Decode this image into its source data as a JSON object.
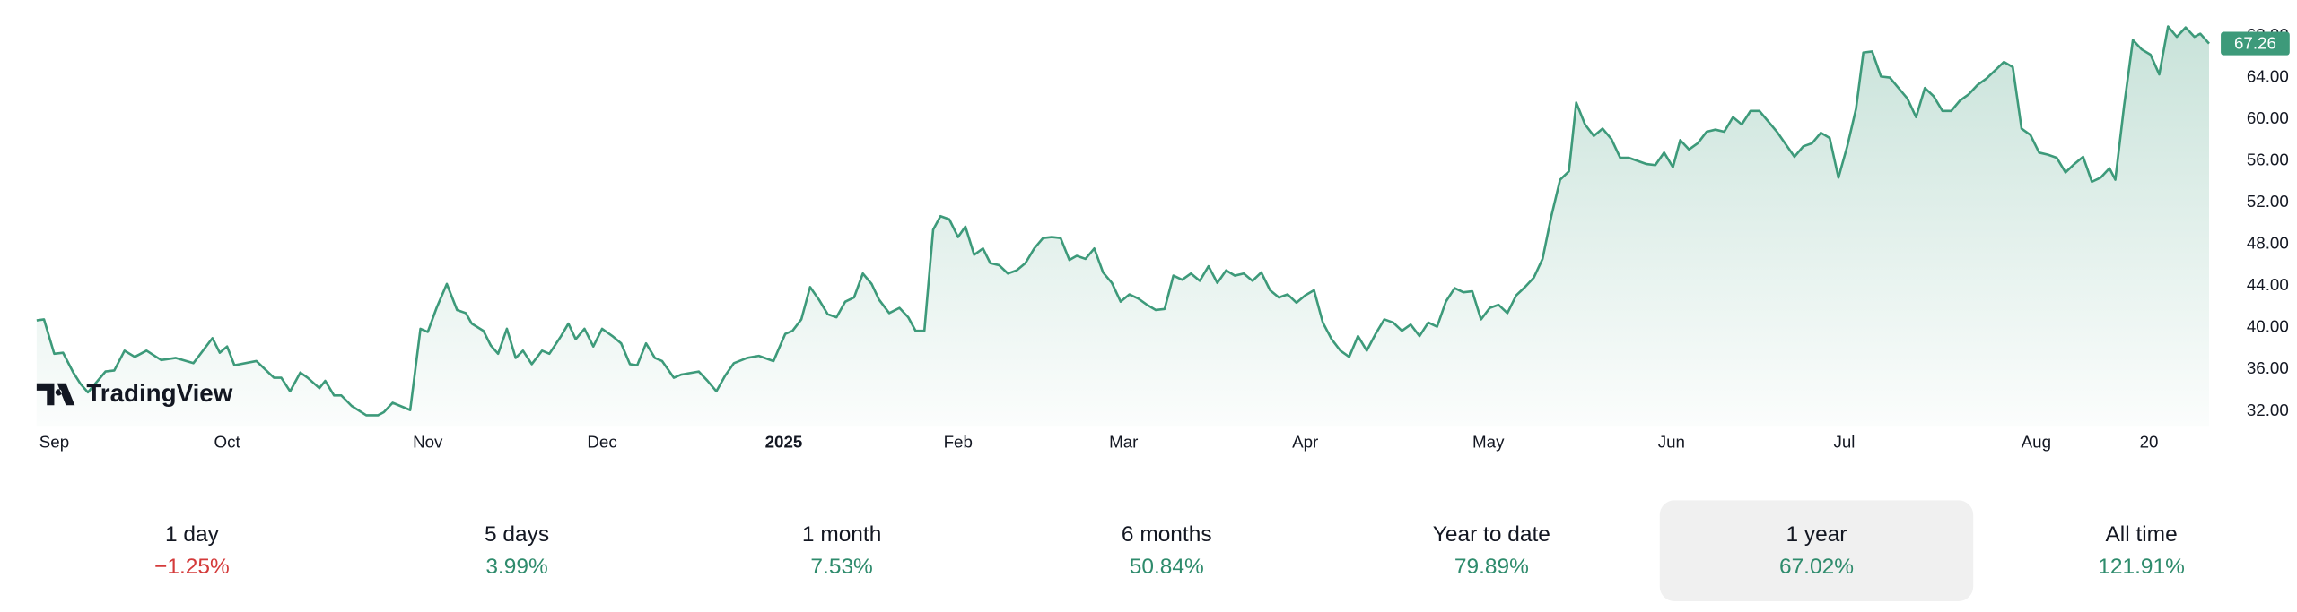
{
  "chart_data": {
    "type": "line",
    "watermark": "TradingView",
    "x": [
      25,
      30,
      37,
      43,
      50,
      55,
      60,
      72,
      78,
      85,
      92,
      100,
      110,
      120,
      132,
      145,
      150,
      155,
      160,
      175,
      187,
      192,
      198,
      205,
      210,
      218,
      222,
      228,
      233,
      240,
      250,
      258,
      262,
      268,
      280,
      287,
      292,
      298,
      305,
      312,
      318,
      322,
      330,
      335,
      340,
      346,
      352,
      357,
      363,
      370,
      375,
      383,
      388,
      393,
      399,
      405,
      411,
      418,
      424,
      430,
      435,
      441,
      447,
      452,
      460,
      465,
      477,
      483,
      489,
      495,
      501,
      510,
      518,
      528,
      536,
      541,
      547,
      553,
      559,
      565,
      571,
      577,
      583,
      589,
      595,
      600,
      607,
      614,
      620,
      625,
      631,
      637,
      642,
      648,
      654,
      659,
      665,
      671,
      676,
      682,
      688,
      694,
      700,
      706,
      712,
      718,
      724,
      730,
      735,
      741,
      747,
      753,
      759,
      765,
      771,
      777,
      783,
      789,
      795,
      801,
      807,
      813,
      819,
      825,
      831,
      837,
      843,
      849,
      855,
      861,
      867,
      873,
      879,
      885,
      891,
      897,
      903,
      909,
      915,
      921,
      927,
      933,
      939,
      945,
      951,
      957,
      963,
      969,
      975,
      981,
      987,
      993,
      999,
      1005,
      1011,
      1017,
      1023,
      1029,
      1035,
      1041,
      1047,
      1053,
      1059,
      1065,
      1071,
      1076,
      1082,
      1088,
      1094,
      1100,
      1106,
      1112,
      1118,
      1124,
      1130,
      1136,
      1142,
      1147,
      1153,
      1159,
      1165,
      1171,
      1177,
      1183,
      1189,
      1195,
      1201,
      1207,
      1213,
      1219,
      1225,
      1231,
      1237,
      1243,
      1249,
      1255,
      1261,
      1267,
      1272,
      1278,
      1284,
      1290,
      1296,
      1302,
      1308,
      1314,
      1320,
      1326,
      1332,
      1338,
      1344,
      1350,
      1356,
      1362,
      1368,
      1374,
      1380,
      1386,
      1392,
      1398,
      1404,
      1410,
      1416,
      1422,
      1428,
      1434,
      1440,
      1444,
      1450,
      1456,
      1462,
      1468,
      1474,
      1480,
      1486,
      1492,
      1498,
      1502,
      1508
    ],
    "series": [
      {
        "color": "#3d9a7a",
        "values": [
          40.7,
          40.8,
          37.5,
          37.6,
          35.7,
          34.6,
          33.8,
          35.8,
          35.9,
          37.8,
          37.2,
          37.8,
          36.9,
          37.1,
          36.6,
          39.0,
          37.6,
          38.2,
          36.4,
          36.8,
          35.2,
          35.2,
          33.9,
          35.7,
          35.2,
          34.2,
          34.9,
          33.5,
          33.5,
          32.5,
          31.6,
          31.6,
          31.9,
          32.8,
          32.1,
          39.9,
          39.6,
          41.9,
          44.2,
          41.7,
          41.4,
          40.4,
          39.7,
          38.3,
          37.5,
          39.9,
          37.1,
          37.8,
          36.5,
          37.8,
          37.5,
          39.2,
          40.4,
          38.9,
          39.9,
          38.2,
          39.9,
          39.2,
          38.5,
          36.5,
          36.4,
          38.5,
          37.1,
          36.8,
          35.2,
          35.5,
          35.8,
          34.9,
          33.9,
          35.4,
          36.6,
          37.1,
          37.3,
          36.8,
          39.4,
          39.7,
          40.8,
          43.9,
          42.7,
          41.3,
          41.0,
          42.5,
          42.9,
          45.2,
          44.2,
          42.7,
          41.4,
          41.9,
          41.0,
          39.7,
          39.7,
          49.4,
          50.7,
          50.4,
          48.7,
          49.7,
          47.0,
          47.6,
          46.2,
          46.0,
          45.2,
          45.5,
          46.2,
          47.6,
          48.6,
          48.7,
          48.6,
          46.5,
          46.9,
          46.6,
          47.6,
          45.3,
          44.3,
          42.5,
          43.2,
          42.8,
          42.2,
          41.7,
          41.8,
          45.0,
          44.6,
          45.2,
          44.5,
          45.9,
          44.3,
          45.5,
          45.0,
          45.2,
          44.5,
          45.3,
          43.6,
          42.9,
          43.2,
          42.4,
          43.1,
          43.6,
          40.5,
          38.9,
          37.8,
          37.2,
          39.2,
          37.8,
          39.4,
          40.8,
          40.5,
          39.7,
          40.3,
          39.2,
          40.5,
          40.1,
          42.5,
          43.8,
          43.4,
          43.5,
          40.8,
          41.9,
          42.2,
          41.4,
          43.1,
          43.9,
          44.8,
          46.6,
          50.7,
          54.2,
          55.0,
          61.6,
          59.5,
          58.4,
          59.1,
          58.1,
          56.3,
          56.3,
          56.0,
          55.7,
          55.6,
          56.8,
          55.4,
          58.0,
          57.1,
          57.7,
          58.8,
          59.0,
          58.8,
          60.2,
          59.5,
          60.8,
          60.8,
          59.8,
          58.8,
          57.6,
          56.4,
          57.4,
          57.7,
          58.7,
          58.2,
          54.4,
          57.4,
          61.0,
          66.4,
          66.5,
          64.1,
          64.0,
          63.0,
          62.0,
          60.2,
          63.0,
          62.2,
          60.8,
          60.8,
          61.8,
          62.4,
          63.3,
          63.9,
          64.7,
          65.5,
          65.0,
          59.1,
          58.5,
          56.8,
          56.6,
          56.3,
          54.9,
          55.7,
          56.4,
          54.0,
          54.4,
          55.3,
          54.2,
          61.3,
          67.6,
          66.7,
          66.2,
          64.3,
          68.9,
          67.9,
          68.8,
          67.9,
          68.2,
          67.26
        ]
      }
    ],
    "xlim": [
      25,
      1508
    ],
    "xticks": [
      {
        "value": 37,
        "label": "Sep"
      },
      {
        "value": 155,
        "label": "Oct"
      },
      {
        "value": 292,
        "label": "Nov"
      },
      {
        "value": 411,
        "label": "Dec"
      },
      {
        "value": 535,
        "label": "2025"
      },
      {
        "value": 654,
        "label": "Feb"
      },
      {
        "value": 767,
        "label": "Mar"
      },
      {
        "value": 891,
        "label": "Apr"
      },
      {
        "value": 1016,
        "label": "May"
      },
      {
        "value": 1141,
        "label": "Jun"
      },
      {
        "value": 1259,
        "label": "Jul"
      },
      {
        "value": 1390,
        "label": "Aug"
      },
      {
        "value": 1467,
        "label": "20"
      }
    ],
    "ylim": [
      30.6,
      70
    ],
    "yticks": [
      {
        "value": 32,
        "label": "32.00"
      },
      {
        "value": 36,
        "label": "36.00"
      },
      {
        "value": 40,
        "label": "40.00"
      },
      {
        "value": 44,
        "label": "44.00"
      },
      {
        "value": 48,
        "label": "48.00"
      },
      {
        "value": 52,
        "label": "52.00"
      },
      {
        "value": 56,
        "label": "56.00"
      },
      {
        "value": 60,
        "label": "60.00"
      },
      {
        "value": 64,
        "label": "64.00"
      },
      {
        "value": 68,
        "label": "68.00"
      }
    ]
  },
  "performance": {
    "selected": 5,
    "items": [
      {
        "label": "1 day",
        "change": "−1.25%",
        "color": "#d43a3a"
      },
      {
        "label": "5 days",
        "change": "3.99%",
        "color": "#2e8b6c"
      },
      {
        "label": "1 month",
        "change": "7.53%",
        "color": "#2e8b6c"
      },
      {
        "label": "6 months",
        "change": "50.84%",
        "color": "#2e8b6c"
      },
      {
        "label": "Year to date",
        "change": "79.89%",
        "color": "#2e8b6c"
      },
      {
        "label": "1 year",
        "change": "67.02%",
        "color": "#2e8b6c"
      },
      {
        "label": "All time",
        "change": "121.91%",
        "color": "#2e8b6c"
      }
    ]
  }
}
